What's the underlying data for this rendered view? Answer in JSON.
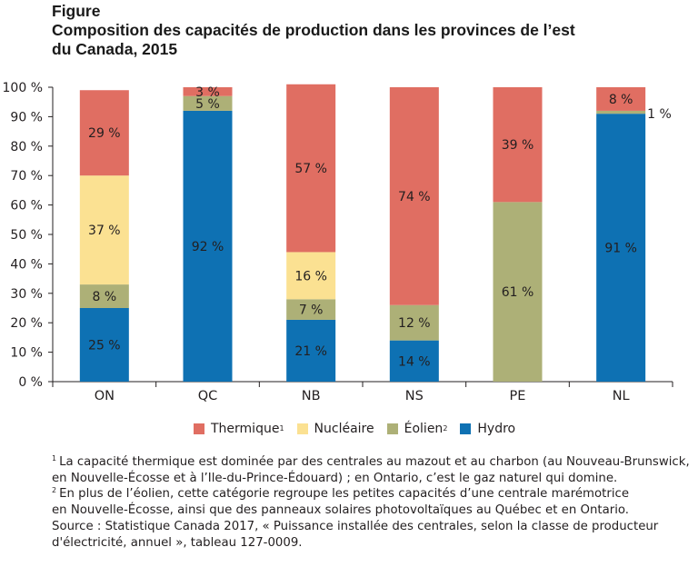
{
  "header": {
    "label": "Figure",
    "title_line1": "Composition des capacités de production dans les provinces de l’est",
    "title_line2": "du Canada, 2015"
  },
  "chart_data": {
    "type": "bar",
    "stacked": true,
    "title": "Composition des capacités de production dans les provinces de l’est du Canada, 2015",
    "xlabel": "",
    "ylabel": "",
    "ylim": [
      0,
      100
    ],
    "yticks": [
      0,
      10,
      20,
      30,
      40,
      50,
      60,
      70,
      80,
      90,
      100
    ],
    "ytick_labels": [
      "0 %",
      "10 %",
      "20 %",
      "30 %",
      "40 %",
      "50 %",
      "60 %",
      "70 %",
      "80 %",
      "90 %",
      "100 %"
    ],
    "grid": false,
    "legend_position": "bottom-center",
    "categories": [
      "ON",
      "QC",
      "NB",
      "NS",
      "PE",
      "NL"
    ],
    "series": [
      {
        "name": "Hydro",
        "color": "#0e71b3",
        "values": [
          25,
          92,
          21,
          14,
          0,
          91
        ]
      },
      {
        "name": "Éolien",
        "footnote": "2",
        "color": "#adb077",
        "values": [
          8,
          5,
          7,
          12,
          61,
          1
        ]
      },
      {
        "name": "Nucléaire",
        "color": "#fbe192",
        "values": [
          37,
          0,
          16,
          0,
          0,
          0
        ]
      },
      {
        "name": "Thermique",
        "footnote": "1",
        "color": "#e06e62",
        "values": [
          29,
          3,
          57,
          74,
          39,
          8
        ]
      }
    ],
    "data_labels": [
      [
        "25 %",
        "8 %",
        "37 %",
        "29 %"
      ],
      [
        "92 %",
        "5 %",
        "",
        "3 %"
      ],
      [
        "21 %",
        "7 %",
        "16 %",
        "57 %"
      ],
      [
        "14 %",
        "12 %",
        "",
        "74 %"
      ],
      [
        "",
        "61 %",
        "",
        "39 %"
      ],
      [
        "91 %",
        "1 %",
        "",
        "8 %"
      ]
    ]
  },
  "legend": {
    "items": [
      {
        "label": "Thermique",
        "sup": "1",
        "color": "#e06e62"
      },
      {
        "label": "Nucléaire",
        "sup": "",
        "color": "#fbe192"
      },
      {
        "label": "Éolien",
        "sup": "2",
        "color": "#adb077"
      },
      {
        "label": "Hydro",
        "sup": "",
        "color": "#0e71b3"
      }
    ]
  },
  "notes": {
    "note1_mark": "1",
    "note1_line1": "La capacité thermique est dominée par des centrales au mazout et au charbon (au Nouveau-Brunswick,",
    "note1_line2": "en Nouvelle-Écosse et à l’Ile-du-Prince-Édouard) ; en Ontario, c’est le gaz naturel qui domine.",
    "note2_mark": "2",
    "note2_line1": "En plus de l’éolien, cette catégorie regroupe les petites capacités d’une centrale marémotrice",
    "note2_line2": "en Nouvelle-Écosse, ainsi que des panneaux solaires photovoltaïques au Québec et en Ontario.",
    "source_line1": "Source : Statistique Canada 2017, « Puissance installée des centrales, selon la classe de producteur",
    "source_line2": "d'électricité, annuel », tableau 127-0009."
  }
}
